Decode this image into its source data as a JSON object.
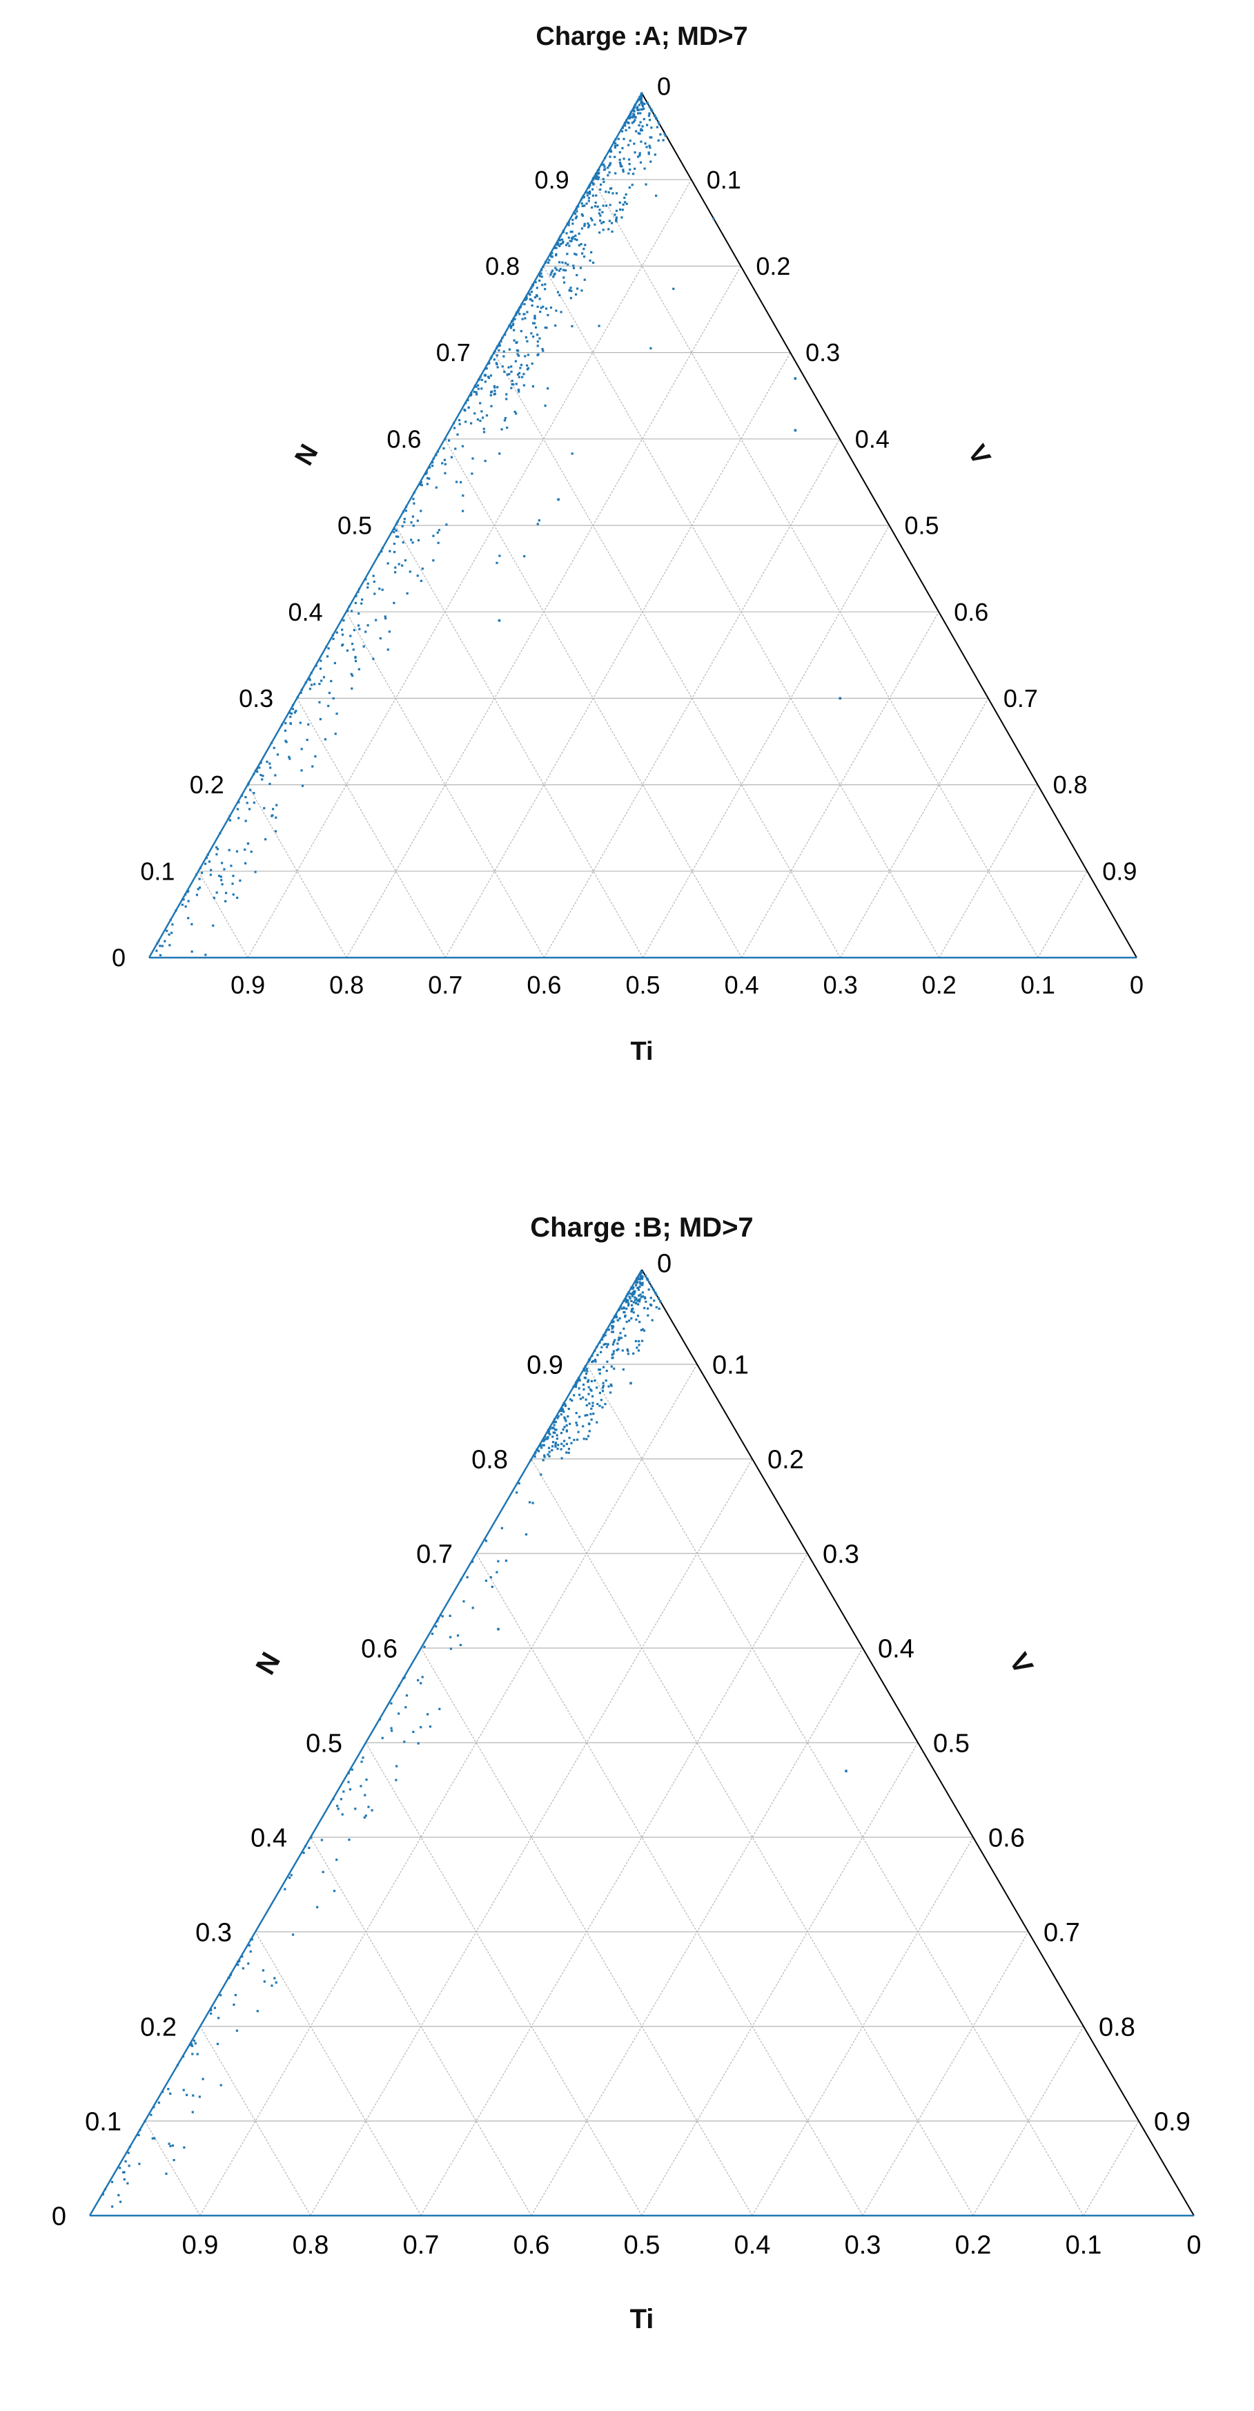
{
  "colors": {
    "points": "#1f77b4",
    "edge": "#000000",
    "grid": "#b5b5b5",
    "grid_dark": "#606060",
    "text": "#111111"
  },
  "chart_data": [
    {
      "type": "scatter",
      "subtype": "ternary",
      "title": "Charge :A; MD>7",
      "axes": {
        "bottom": "Ti",
        "left": "N",
        "right": "V"
      },
      "tick_labels": {
        "bottom": [
          "0.9",
          "0.8",
          "0.7",
          "0.6",
          "0.5",
          "0.4",
          "0.3",
          "0.2",
          "0.1",
          "0"
        ],
        "left": [
          "0",
          "0.1",
          "0.2",
          "0.3",
          "0.4",
          "0.5",
          "0.6",
          "0.7",
          "0.8",
          "0.9"
        ],
        "right": [
          "0",
          "0.1",
          "0.2",
          "0.3",
          "0.4",
          "0.5",
          "0.6",
          "0.7",
          "0.8",
          "0.9"
        ]
      },
      "grid": true,
      "point_clusters": [
        {
          "region": "near V=0 edge, N 0.65-0.98",
          "n_range": [
            0.65,
            0.99
          ],
          "v_range": [
            0.0,
            0.05
          ],
          "count": 520
        },
        {
          "region": "near V=0 edge, N 0.3-0.65",
          "n_range": [
            0.3,
            0.65
          ],
          "v_range": [
            0.0,
            0.06
          ],
          "count": 180
        },
        {
          "region": "near Ti corner",
          "n_range": [
            0.0,
            0.3
          ],
          "v_range": [
            0.0,
            0.06
          ],
          "count": 140
        },
        {
          "region": "scattered interior",
          "n_range": [
            0.35,
            0.9
          ],
          "v_range": [
            0.05,
            0.2
          ],
          "count": 25
        }
      ],
      "outliers": [
        {
          "N": 0.3,
          "V": 0.55
        },
        {
          "N": 0.39,
          "V": 0.16
        },
        {
          "N": 0.53,
          "V": 0.15
        },
        {
          "N": 0.61,
          "V": 0.35
        },
        {
          "N": 0.67,
          "V": 0.32
        }
      ]
    },
    {
      "type": "scatter",
      "subtype": "ternary",
      "title": "Charge :B; MD>7",
      "axes": {
        "bottom": "Ti",
        "left": "N",
        "right": "V"
      },
      "tick_labels": {
        "bottom": [
          "0.9",
          "0.8",
          "0.7",
          "0.6",
          "0.5",
          "0.4",
          "0.3",
          "0.2",
          "0.1",
          "0"
        ],
        "left": [
          "0",
          "0.1",
          "0.2",
          "0.3",
          "0.4",
          "0.5",
          "0.6",
          "0.7",
          "0.8",
          "0.9"
        ],
        "right": [
          "0",
          "0.1",
          "0.2",
          "0.3",
          "0.4",
          "0.5",
          "0.6",
          "0.7",
          "0.8",
          "0.9"
        ]
      },
      "grid": true,
      "point_clusters": [
        {
          "region": "near V=0 edge, N 0.8-0.99",
          "n_range": [
            0.8,
            0.995
          ],
          "v_range": [
            0.0,
            0.04
          ],
          "count": 360
        },
        {
          "region": "near V=0 edge, N 0.55-0.8",
          "n_range": [
            0.55,
            0.8
          ],
          "v_range": [
            0.0,
            0.04
          ],
          "count": 40
        },
        {
          "region": "near V=0 edge, N 0.15-0.55",
          "n_range": [
            0.15,
            0.55
          ],
          "v_range": [
            0.0,
            0.05
          ],
          "count": 90
        },
        {
          "region": "near Ti corner",
          "n_range": [
            0.0,
            0.15
          ],
          "v_range": [
            0.0,
            0.05
          ],
          "count": 40
        }
      ],
      "outliers": [
        {
          "N": 0.47,
          "V": 0.45
        },
        {
          "N": 0.62,
          "V": 0.06
        },
        {
          "N": 0.88,
          "V": 0.05
        }
      ]
    }
  ]
}
